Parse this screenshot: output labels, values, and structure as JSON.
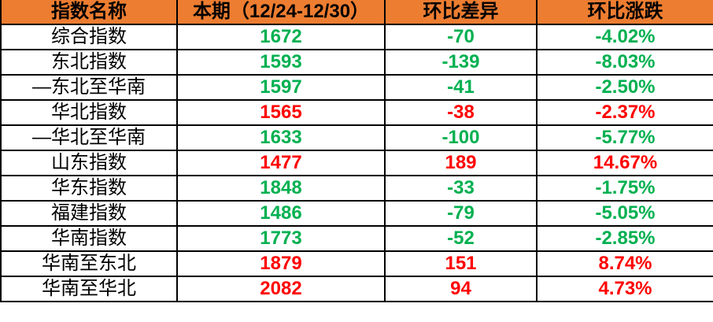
{
  "table": {
    "headers": [
      "指数名称",
      "本期（12/24-12/30）",
      "环比差异",
      "环比涨跌"
    ],
    "rows": [
      {
        "label": "综合指数",
        "current": "1672",
        "diff": "-70",
        "pct": "-4.02%",
        "color": "green"
      },
      {
        "label": "东北指数",
        "current": "1593",
        "diff": "-139",
        "pct": "-8.03%",
        "color": "green"
      },
      {
        "label": "—东北至华南",
        "current": "1597",
        "diff": "-41",
        "pct": "-2.50%",
        "color": "green"
      },
      {
        "label": "华北指数",
        "current": "1565",
        "diff": "-38",
        "pct": "-2.37%",
        "color": "red"
      },
      {
        "label": "—华北至华南",
        "current": "1633",
        "diff": "-100",
        "pct": "-5.77%",
        "color": "green"
      },
      {
        "label": "山东指数",
        "current": "1477",
        "diff": "189",
        "pct": "14.67%",
        "color": "red"
      },
      {
        "label": "华东指数",
        "current": "1848",
        "diff": "-33",
        "pct": "-1.75%",
        "color": "green"
      },
      {
        "label": "福建指数",
        "current": "1486",
        "diff": "-79",
        "pct": "-5.05%",
        "color": "green"
      },
      {
        "label": "华南指数",
        "current": "1773",
        "diff": "-52",
        "pct": "-2.85%",
        "color": "green"
      },
      {
        "label": "华南至东北",
        "current": "1879",
        "diff": "151",
        "pct": "8.74%",
        "color": "red"
      },
      {
        "label": "华南至华北",
        "current": "2082",
        "diff": "94",
        "pct": "4.73%",
        "color": "red"
      }
    ]
  },
  "colors": {
    "header_bg": "#ED7D31",
    "green": "#00B050",
    "red": "#FF0000",
    "border": "#000000"
  },
  "chart_data": {
    "type": "table",
    "title": "",
    "columns": [
      "指数名称",
      "本期（12/24-12/30）",
      "环比差异",
      "环比涨跌"
    ],
    "rows": [
      {
        "name": "综合指数",
        "current": 1672,
        "diff": -70,
        "pct_change": "-4.02%",
        "font_color": "green"
      },
      {
        "name": "东北指数",
        "current": 1593,
        "diff": -139,
        "pct_change": "-8.03%",
        "font_color": "green"
      },
      {
        "name": "—东北至华南",
        "current": 1597,
        "diff": -41,
        "pct_change": "-2.50%",
        "font_color": "green"
      },
      {
        "name": "华北指数",
        "current": 1565,
        "diff": -38,
        "pct_change": "-2.37%",
        "font_color": "red"
      },
      {
        "name": "—华北至华南",
        "current": 1633,
        "diff": -100,
        "pct_change": "-5.77%",
        "font_color": "green"
      },
      {
        "name": "山东指数",
        "current": 1477,
        "diff": 189,
        "pct_change": "14.67%",
        "font_color": "red"
      },
      {
        "name": "华东指数",
        "current": 1848,
        "diff": -33,
        "pct_change": "-1.75%",
        "font_color": "green"
      },
      {
        "name": "福建指数",
        "current": 1486,
        "diff": -79,
        "pct_change": "-5.05%",
        "font_color": "green"
      },
      {
        "name": "华南指数",
        "current": 1773,
        "diff": -52,
        "pct_change": "-2.85%",
        "font_color": "green"
      },
      {
        "name": "华南至东北",
        "current": 1879,
        "diff": 151,
        "pct_change": "8.74%",
        "font_color": "red"
      },
      {
        "name": "华南至华北",
        "current": 2082,
        "diff": 94,
        "pct_change": "4.73%",
        "font_color": "red"
      }
    ],
    "layout": {
      "header_background": "#ED7D31",
      "grid": "black solid borders",
      "value_alignment": "center"
    }
  }
}
